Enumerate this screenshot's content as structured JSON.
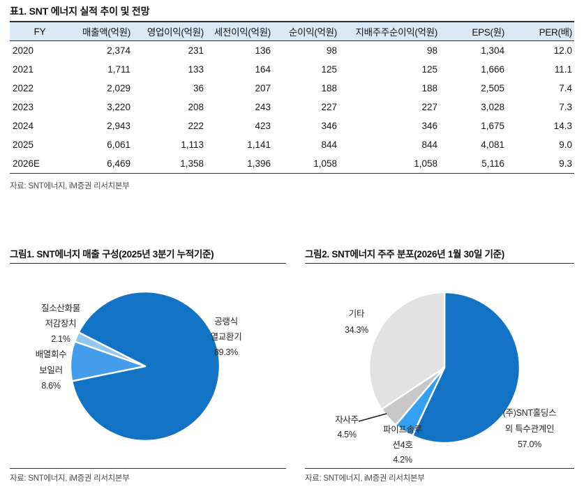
{
  "table": {
    "title": "표1. SNT 에너지 실적 추이 및 전망",
    "columns": [
      "FY",
      "매출액(억원)",
      "영업이익(억원)",
      "세전이익(억원)",
      "순이익(억원)",
      "지배주주순이익(억원)",
      "EPS(원)",
      "PER(배)"
    ],
    "rows": [
      [
        "2020",
        "2,374",
        "231",
        "136",
        "98",
        "98",
        "1,304",
        "12.0"
      ],
      [
        "2021",
        "1,711",
        "133",
        "164",
        "125",
        "125",
        "1,666",
        "11.1"
      ],
      [
        "2022",
        "2,029",
        "36",
        "207",
        "188",
        "188",
        "2,505",
        "7.4"
      ],
      [
        "2023",
        "3,220",
        "208",
        "243",
        "227",
        "227",
        "3,028",
        "7.3"
      ],
      [
        "2024",
        "2,943",
        "222",
        "423",
        "346",
        "346",
        "1,675",
        "14.3"
      ],
      [
        "2025",
        "6,061",
        "1,113",
        "1,141",
        "844",
        "844",
        "4,081",
        "9.0"
      ],
      [
        "2026E",
        "6,469",
        "1,358",
        "1,396",
        "1,058",
        "1,058",
        "5,116",
        "9.3"
      ]
    ],
    "source": "자료: SNT에너지, iM증권 리서치본부"
  },
  "chart_data": [
    {
      "type": "pie",
      "title": "그림1. SNT에너지 매출 구성(2025년 3분기 누적기준)",
      "labels": [
        "공랭식 열교환기",
        "배열회수 보일러",
        "질소산화물 저감장치"
      ],
      "values": [
        89.3,
        8.6,
        2.1
      ],
      "colors": [
        "#1272c3",
        "#449dea",
        "#92c5f0"
      ],
      "start_angle": 297,
      "legend": "none",
      "callouts": [
        {
          "lines": [
            "공랭식",
            "열교환기",
            "89.3%"
          ]
        },
        {
          "lines": [
            "배열회수",
            "보일러",
            "8.6%"
          ]
        },
        {
          "lines": [
            "질소산화물",
            "저감장치",
            "2.1%"
          ]
        }
      ],
      "source": "자료: SNT에너지, iM증권 리서치본부"
    },
    {
      "type": "pie",
      "title": "그림2. SNT에너지 주주 분포(2026년 1월 30일 기준)",
      "labels": [
        "(주)SNT홀딩스 외 특수관계인",
        "파이프솔루션4호",
        "자사주",
        "기타"
      ],
      "values": [
        57.0,
        4.2,
        4.5,
        34.3
      ],
      "colors": [
        "#1272c3",
        "#35a0f2",
        "#c7c7c7",
        "#e2e2e2"
      ],
      "start_angle": 0,
      "legend": "none",
      "callouts": [
        {
          "lines": [
            "(주)SNT홀딩스",
            "외 특수관계인",
            "57.0%"
          ]
        },
        {
          "lines": [
            "파이프솔루",
            "션4호",
            "4.2%"
          ]
        },
        {
          "lines": [
            "자사주",
            "4.5%"
          ]
        },
        {
          "lines": [
            "기타",
            "34.3%"
          ]
        }
      ],
      "source": "자료: SNT에너지, iM증권 리서치본부"
    }
  ]
}
